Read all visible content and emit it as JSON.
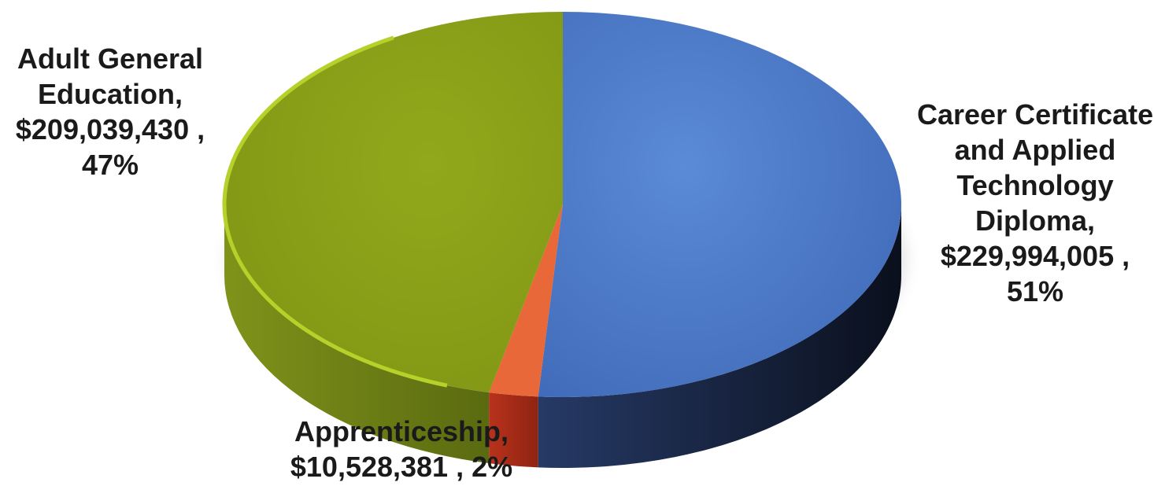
{
  "chart_data": {
    "type": "pie",
    "title": "",
    "slices": [
      {
        "name": "Career Certificate and Applied Technology Diploma",
        "value": 229994005,
        "percent": 51,
        "color": "#4472C4",
        "label_lines": [
          "Career Certificate",
          "and Applied",
          "Technology",
          "Diploma,",
          "$229,994,005 ,",
          "51%"
        ]
      },
      {
        "name": "Apprenticeship",
        "value": 10528381,
        "percent": 2,
        "color": "#E8683A",
        "label_lines": [
          "Apprenticeship,",
          "$10,528,381 , 2%"
        ]
      },
      {
        "name": "Adult General Education",
        "value": 209039430,
        "percent": 47,
        "color": "#8FA51C",
        "label_lines": [
          "Adult General",
          "Education,",
          "$209,039,430 ,",
          "47%"
        ]
      }
    ],
    "legend": "none",
    "style": "3d-pie"
  }
}
